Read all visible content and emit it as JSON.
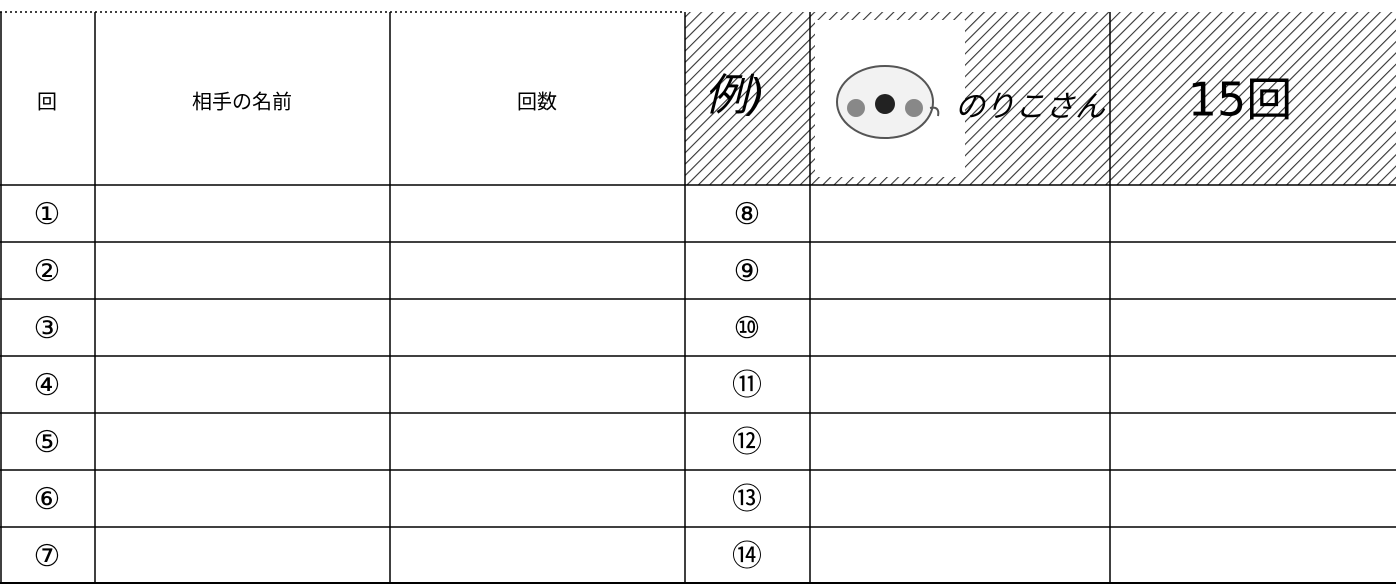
{
  "header": {
    "columns": [
      "回",
      "相手の名前",
      "回数"
    ],
    "example": {
      "label": "例)",
      "name": "のりこさん",
      "count": "15回"
    }
  },
  "rows": {
    "left": [
      "①",
      "②",
      "③",
      "④",
      "⑤",
      "⑥",
      "⑦"
    ],
    "right": [
      "⑧",
      "⑨",
      "⑩",
      "⑪",
      "⑫",
      "⑬",
      "⑭"
    ]
  }
}
